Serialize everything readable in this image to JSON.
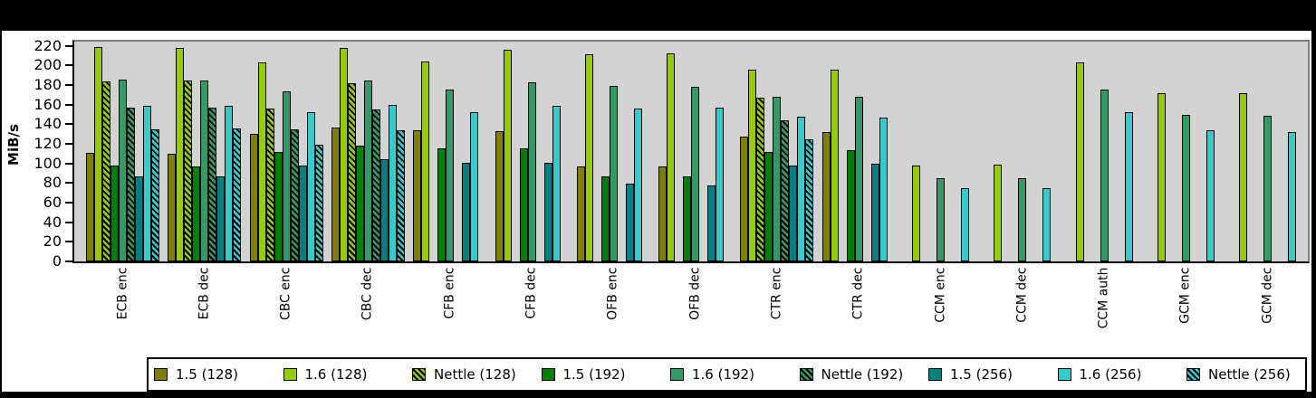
{
  "chart_data": {
    "type": "bar",
    "title": "",
    "ylabel": "MiB/s",
    "xlabel": "",
    "ylim": [
      0,
      220
    ],
    "yticks": [
      0,
      20,
      40,
      60,
      80,
      100,
      120,
      140,
      160,
      180,
      200,
      220
    ],
    "grid": false,
    "legend_position": "bottom",
    "plot_background": "#d3d3d3",
    "frame_border_color": "#7f7f7f",
    "categories": [
      "ECB enc",
      "ECB dec",
      "CBC enc",
      "CBC dec",
      "CFB enc",
      "CFB dec",
      "OFB enc",
      "OFB dec",
      "CTR enc",
      "CTR dec",
      "CCM enc",
      "CCM dec",
      "CCM auth",
      "GCM enc",
      "GCM dec"
    ],
    "series": [
      {
        "name": "1.5 (128)",
        "color": "#7f7f00",
        "hatched": false,
        "values": [
          111,
          110,
          130,
          137,
          134,
          133,
          97,
          97,
          127,
          132,
          null,
          null,
          null,
          null,
          null
        ]
      },
      {
        "name": "1.6 (128)",
        "color": "#99cc00",
        "hatched": false,
        "values": [
          219,
          218,
          203,
          218,
          204,
          216,
          211,
          212,
          196,
          196,
          98,
          99,
          203,
          172,
          172
        ]
      },
      {
        "name": "Nettle (128)",
        "color": "#99cc00",
        "hatched": true,
        "values": [
          184,
          185,
          156,
          182,
          null,
          null,
          null,
          null,
          167,
          null,
          null,
          null,
          null,
          null,
          null
        ]
      },
      {
        "name": "1.5 (192)",
        "color": "#008000",
        "hatched": false,
        "values": [
          98,
          97,
          112,
          118,
          115,
          115,
          87,
          87,
          112,
          114,
          null,
          null,
          null,
          null,
          null
        ]
      },
      {
        "name": "1.6 (192)",
        "color": "#339966",
        "hatched": false,
        "values": [
          186,
          185,
          174,
          185,
          175,
          183,
          179,
          178,
          168,
          168,
          85,
          85,
          175,
          150,
          149
        ]
      },
      {
        "name": "Nettle (192)",
        "color": "#339966",
        "hatched": true,
        "values": [
          157,
          157,
          135,
          155,
          null,
          null,
          null,
          null,
          144,
          null,
          null,
          null,
          null,
          null,
          null
        ]
      },
      {
        "name": "1.5 (256)",
        "color": "#008080",
        "hatched": false,
        "values": [
          87,
          87,
          98,
          104,
          101,
          101,
          79,
          78,
          98,
          100,
          null,
          null,
          null,
          null,
          null
        ]
      },
      {
        "name": "1.6 (256)",
        "color": "#33cccc",
        "hatched": false,
        "values": [
          159,
          159,
          152,
          160,
          152,
          159,
          156,
          157,
          148,
          147,
          75,
          75,
          152,
          134,
          132
        ]
      },
      {
        "name": "Nettle (256)",
        "color": "#33cccc",
        "hatched": true,
        "values": [
          135,
          136,
          119,
          134,
          null,
          null,
          null,
          null,
          125,
          null,
          null,
          null,
          null,
          null,
          null
        ]
      }
    ]
  }
}
